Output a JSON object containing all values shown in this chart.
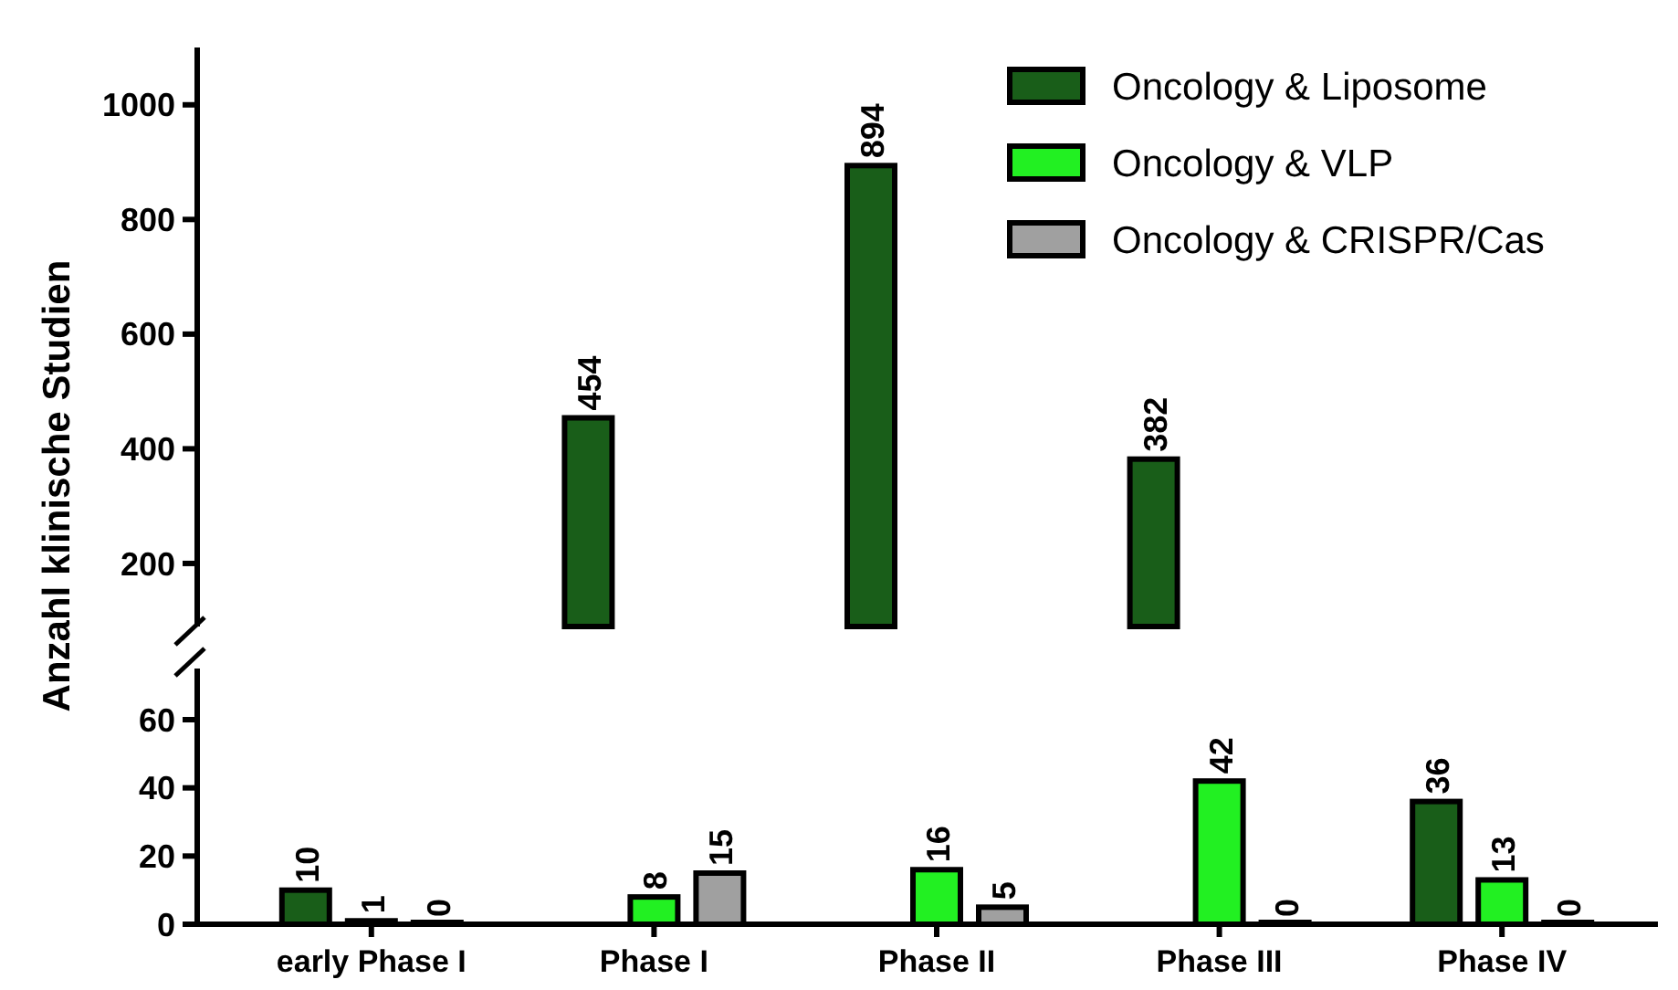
{
  "chart_data": [
    {
      "type": "bar",
      "ylabel": "Anzahl klinische Studien",
      "categories": [
        "early Phase I",
        "Phase I",
        "Phase II",
        "Phase III",
        "Phase IV"
      ],
      "ylim": [
        90,
        1100
      ],
      "yticks": [
        200,
        400,
        600,
        800,
        1000
      ],
      "tick_labels": "y",
      "legend": "top right",
      "series": [
        {
          "name": "Oncology & Liposome",
          "color": "#195e19",
          "values": [
            null,
            454,
            894,
            382,
            null
          ],
          "value_labels": [
            null,
            "454",
            "894",
            "382",
            null
          ]
        },
        {
          "name": "Oncology & VLP",
          "color": "#22f022",
          "values": [
            null,
            null,
            null,
            null,
            null
          ]
        },
        {
          "name": "Oncology & CRISPR/Cas",
          "color": "#a0a0a0",
          "values": [
            null,
            null,
            null,
            null,
            null
          ]
        }
      ]
    },
    {
      "type": "bar",
      "categories": [
        "early Phase I",
        "Phase I",
        "Phase II",
        "Phase III",
        "Phase IV"
      ],
      "ylim": [
        0,
        75
      ],
      "yticks": [
        0,
        20,
        40,
        60
      ],
      "series": [
        {
          "color": "#195e19",
          "values": [
            10,
            null,
            null,
            null,
            36
          ],
          "value_labels": [
            "10",
            null,
            null,
            null,
            "36"
          ]
        },
        {
          "color": "#22f022",
          "values": [
            1,
            8,
            16,
            42,
            13
          ],
          "value_labels": [
            "1",
            "8",
            "16",
            "42",
            "13"
          ]
        },
        {
          "color": "#a0a0a0",
          "values": [
            0,
            15,
            5,
            0,
            0
          ],
          "value_labels": [
            "0",
            "15",
            "5",
            "0",
            "0"
          ]
        }
      ]
    }
  ]
}
